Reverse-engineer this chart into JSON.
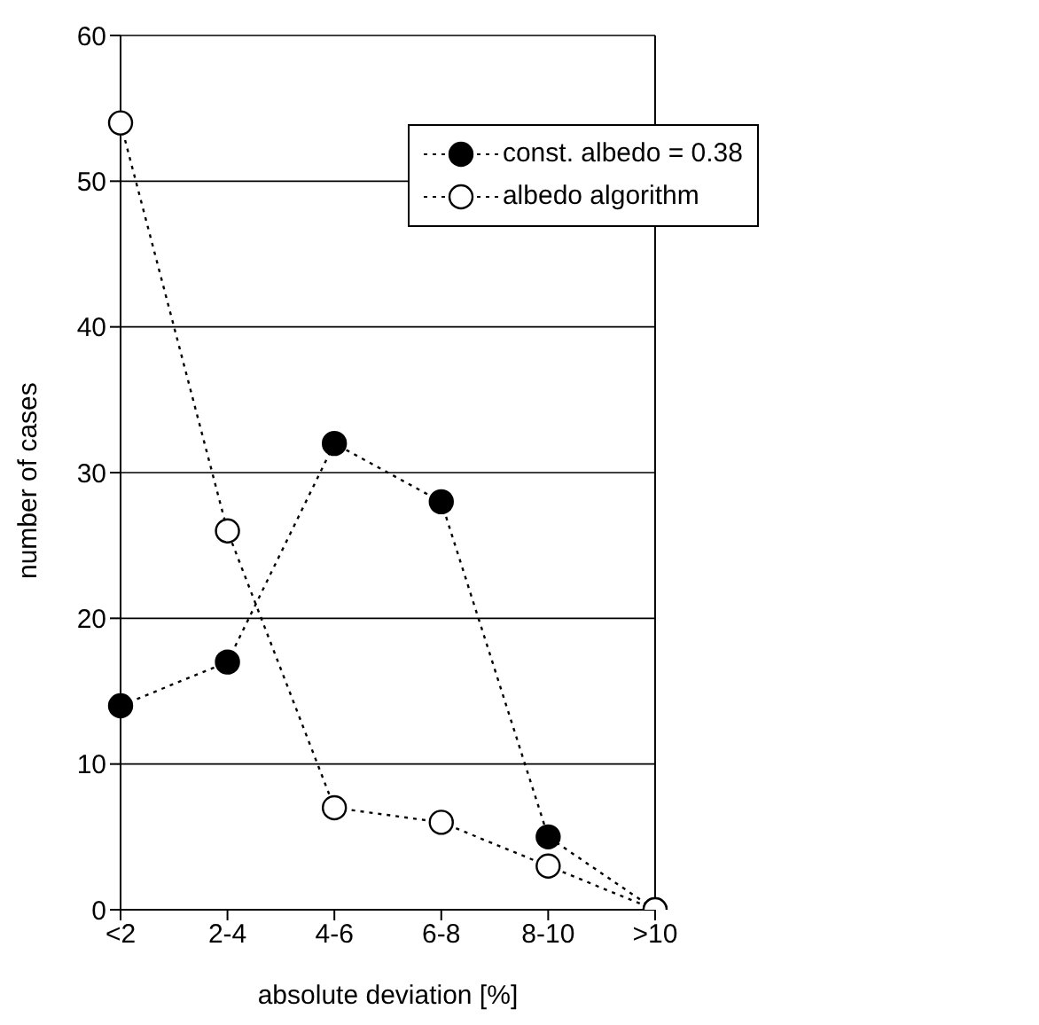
{
  "chart_data": {
    "type": "line",
    "xlabel": "absolute deviation [%]",
    "ylabel": "number of cases",
    "categories": [
      "<2",
      "2-4",
      "4-6",
      "6-8",
      "8-10",
      ">10"
    ],
    "series": [
      {
        "name": "const. albedo = 0.38",
        "color": "#000000",
        "values": [
          14,
          17,
          32,
          28,
          5,
          0
        ]
      },
      {
        "name": "albedo algorithm",
        "color": "#000000",
        "values": [
          54,
          26,
          7,
          6,
          3,
          0
        ]
      }
    ],
    "ylim": [
      0,
      60
    ],
    "yticks": [
      0,
      10,
      20,
      30,
      40,
      50,
      60
    ],
    "grid": "y",
    "legend": "top right",
    "marker": "circle",
    "line_style": "dotted"
  }
}
